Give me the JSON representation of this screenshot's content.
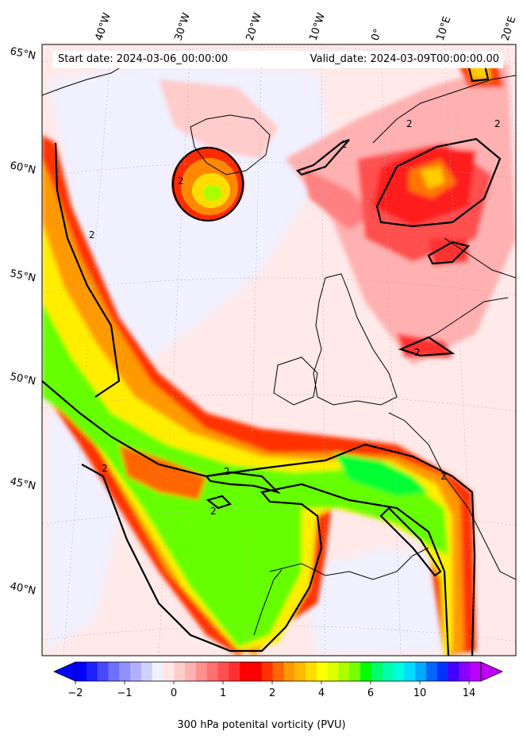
{
  "header": {
    "start_date": "Start date: 2024-03-06_00:00:00",
    "valid_date": "Valid_date: 2024-03-09T00:00:00.00"
  },
  "map": {
    "lon_labels": [
      "40°W",
      "30°W",
      "20°W",
      "10°W",
      "0°",
      "10°E",
      "20°E"
    ],
    "lat_labels": [
      "65°N",
      "60°N",
      "55°N",
      "50°N",
      "45°N",
      "40°N"
    ],
    "contour_label": "2",
    "coastline_color": "#000000",
    "contour_color": "#000000"
  },
  "colorbar": {
    "label": "300 hPa potenital vorticity (PVU)",
    "ticks": [
      "−2",
      "−1",
      "0",
      "1",
      "2",
      "4",
      "6",
      "10",
      "14"
    ],
    "colors": [
      "#0000ff",
      "#2020ff",
      "#4848ff",
      "#7070ff",
      "#9090ff",
      "#b0b0ff",
      "#d0d0ff",
      "#f0f0ff",
      "#ffe6e6",
      "#ffcccc",
      "#ffb0b0",
      "#ff9090",
      "#ff7070",
      "#ff5050",
      "#ff3030",
      "#ff0000",
      "#ff0000",
      "#ff3300",
      "#ff6600",
      "#ff9900",
      "#ffbb00",
      "#ffdd00",
      "#ffff00",
      "#ddff00",
      "#aaff00",
      "#77ff00",
      "#00ff00",
      "#00ff66",
      "#00ffaa",
      "#00ffdd",
      "#00ddff",
      "#00aaff",
      "#0066ff",
      "#0033ff",
      "#4400ff",
      "#8800ff",
      "#bb00ff"
    ],
    "under_color": "#0000ff",
    "over_color": "#c000ff"
  }
}
